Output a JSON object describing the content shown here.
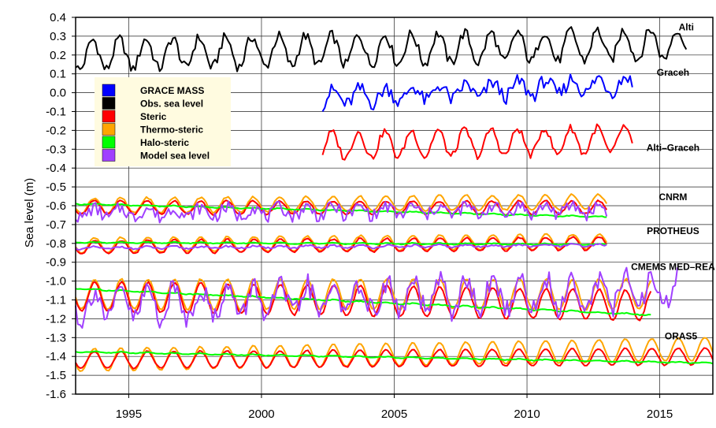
{
  "chart_data": {
    "type": "line",
    "ylabel": "Sea level (m)",
    "xlim": [
      1993,
      2017
    ],
    "ylim": [
      -1.6,
      0.4
    ],
    "x_ticks": [
      1995,
      2000,
      2005,
      2010,
      2015
    ],
    "y_ticks": [
      "0.4",
      "0.3",
      "0.2",
      "0.1",
      "0.0",
      "-0.1",
      "-0.2",
      "-0.3",
      "-0.4",
      "-0.5",
      "-0.6",
      "-0.7",
      "-0.8",
      "-0.9",
      "-1.0",
      "-1.1",
      "-1.2",
      "-1.3",
      "-1.4",
      "-1.5",
      "-1.6"
    ],
    "grid": true,
    "legend_position": "upper-left",
    "legend": [
      {
        "label": "GRACE MASS",
        "color": "#0000ff"
      },
      {
        "label": "Obs. sea level",
        "color": "#000000"
      },
      {
        "label": "Steric",
        "color": "#ff0000"
      },
      {
        "label": "Thermo-steric",
        "color": "#ffa500"
      },
      {
        "label": "Halo-steric",
        "color": "#00ff00"
      },
      {
        "label": "Model sea level",
        "color": "#a040ff"
      }
    ],
    "annotations": [
      {
        "label": "Alti",
        "x": 2016.0,
        "y": 0.33
      },
      {
        "label": "Graceh",
        "x": 2015.5,
        "y": 0.09
      },
      {
        "label": "Alti–Graceh",
        "x": 2015.5,
        "y": -0.31
      },
      {
        "label": "CNRM",
        "x": 2015.5,
        "y": -0.57
      },
      {
        "label": "PROTHEUS",
        "x": 2015.5,
        "y": -0.75
      },
      {
        "label": "CMEMS MED–REA",
        "x": 2015.5,
        "y": -0.94
      },
      {
        "label": "ORAS5",
        "x": 2015.8,
        "y": -1.31
      }
    ],
    "series": [
      {
        "name": "Alti",
        "kind": "seasonal",
        "color": "#000000",
        "x_start": 1993.0,
        "x_end": 2016.0,
        "mean_start": 0.2,
        "mean_end": 0.26,
        "amplitude": 0.08,
        "phase": 0.65,
        "noise": 0.03
      },
      {
        "name": "Graceh",
        "kind": "seasonal",
        "color": "#0000ff",
        "x_start": 2002.3,
        "x_end": 2014.0,
        "mean_start": -0.03,
        "mean_end": 0.05,
        "amplitude": 0.04,
        "phase": 0.7,
        "noise": 0.04
      },
      {
        "name": "Alti–Graceh",
        "kind": "seasonal",
        "color": "#ff0000",
        "x_start": 2002.3,
        "x_end": 2014.0,
        "mean_start": -0.28,
        "mean_end": -0.25,
        "amplitude": 0.07,
        "phase": 0.65,
        "noise": 0.02
      },
      {
        "name": "CNRM Thermo-steric",
        "kind": "seasonal",
        "color": "#ffa500",
        "x_start": 1993.0,
        "x_end": 2013.0,
        "mean_start": -0.6,
        "mean_end": -0.58,
        "amplitude": 0.04,
        "phase": 0.7,
        "noise": 0.005
      },
      {
        "name": "CNRM Steric",
        "kind": "seasonal",
        "color": "#ff0000",
        "x_start": 1993.0,
        "x_end": 2013.0,
        "mean_start": -0.61,
        "mean_end": -0.61,
        "amplitude": 0.035,
        "phase": 0.7,
        "noise": 0.005
      },
      {
        "name": "CNRM Halo-steric",
        "kind": "seasonal",
        "color": "#00ff00",
        "x_start": 1993.0,
        "x_end": 2013.0,
        "mean_start": -0.59,
        "mean_end": -0.66,
        "amplitude": 0.003,
        "phase": 0.7,
        "noise": 0.002
      },
      {
        "name": "CNRM Model sea level",
        "kind": "seasonal",
        "color": "#a040ff",
        "x_start": 1993.0,
        "x_end": 2013.0,
        "mean_start": -0.64,
        "mean_end": -0.62,
        "amplitude": 0.025,
        "phase": 0.7,
        "noise": 0.035
      },
      {
        "name": "PROTHEUS Thermo-steric",
        "kind": "seasonal",
        "color": "#ffa500",
        "x_start": 1993.0,
        "x_end": 2013.0,
        "mean_start": -0.81,
        "mean_end": -0.79,
        "amplitude": 0.04,
        "phase": 0.72,
        "noise": 0.004
      },
      {
        "name": "PROTHEUS Steric",
        "kind": "seasonal",
        "color": "#ff0000",
        "x_start": 1993.0,
        "x_end": 2013.0,
        "mean_start": -0.82,
        "mean_end": -0.8,
        "amplitude": 0.035,
        "phase": 0.72,
        "noise": 0.004
      },
      {
        "name": "PROTHEUS Halo-steric",
        "kind": "seasonal",
        "color": "#00ff00",
        "x_start": 1993.0,
        "x_end": 2013.0,
        "mean_start": -0.795,
        "mean_end": -0.805,
        "amplitude": 0.003,
        "phase": 0.72,
        "noise": 0.002
      },
      {
        "name": "PROTHEUS Model sea level",
        "kind": "seasonal",
        "color": "#a040ff",
        "x_start": 1993.0,
        "x_end": 2013.0,
        "mean_start": -0.825,
        "mean_end": -0.81,
        "amplitude": 0.006,
        "phase": 0.72,
        "noise": 0.005
      },
      {
        "name": "CMEMS MED–REA Thermo-steric",
        "kind": "seasonal",
        "color": "#ffa500",
        "x_start": 1993.0,
        "x_end": 2014.7,
        "mean_start": -1.07,
        "mean_end": -1.07,
        "amplitude": 0.08,
        "phase": 0.72,
        "noise": 0.005
      },
      {
        "name": "CMEMS MED–REA Steric",
        "kind": "seasonal",
        "color": "#ff0000",
        "x_start": 1993.0,
        "x_end": 2014.7,
        "mean_start": -1.08,
        "mean_end": -1.13,
        "amplitude": 0.08,
        "phase": 0.72,
        "noise": 0.005
      },
      {
        "name": "CMEMS MED–REA Halo-steric",
        "kind": "seasonal",
        "color": "#00ff00",
        "x_start": 1993.0,
        "x_end": 2014.7,
        "mean_start": -1.04,
        "mean_end": -1.18,
        "amplitude": 0.003,
        "phase": 0.72,
        "noise": 0.003
      },
      {
        "name": "CMEMS MED–REA Model sea level",
        "kind": "seasonal",
        "color": "#a040ff",
        "x_start": 1993.0,
        "x_end": 2015.7,
        "mean_start": -1.13,
        "mean_end": -1.05,
        "amplitude": 0.08,
        "phase": 0.72,
        "noise": 0.06
      },
      {
        "name": "ORAS5 Thermo-steric",
        "kind": "seasonal",
        "color": "#ffa500",
        "x_start": 1993.0,
        "x_end": 2017.0,
        "mean_start": -1.42,
        "mean_end": -1.36,
        "amplitude": 0.06,
        "phase": 0.7,
        "noise": 0.003
      },
      {
        "name": "ORAS5 Steric",
        "kind": "seasonal",
        "color": "#ff0000",
        "x_start": 1993.0,
        "x_end": 2017.0,
        "mean_start": -1.42,
        "mean_end": -1.4,
        "amplitude": 0.045,
        "phase": 0.7,
        "noise": 0.003
      },
      {
        "name": "ORAS5 Halo-steric",
        "kind": "seasonal",
        "color": "#00ff00",
        "x_start": 1993.0,
        "x_end": 2017.0,
        "mean_start": -1.375,
        "mean_end": -1.435,
        "amplitude": 0.003,
        "phase": 0.7,
        "noise": 0.002
      }
    ]
  }
}
